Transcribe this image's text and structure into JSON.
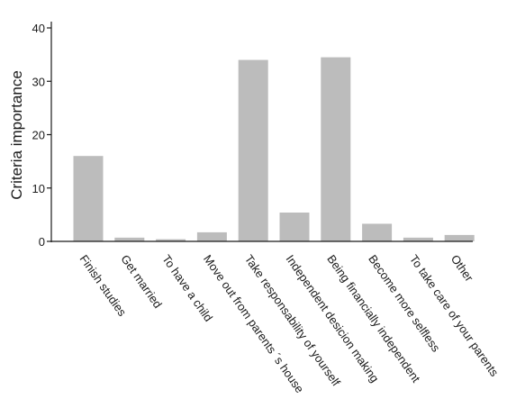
{
  "chart_data": {
    "type": "bar",
    "ylabel": "Criteria importance",
    "xlabel": "",
    "title": "",
    "ylim": [
      0,
      40
    ],
    "yticks": [
      0,
      10,
      20,
      30,
      40
    ],
    "grid": false,
    "bar_color": "#bcbcbc",
    "categories": [
      "Finish studies",
      "Get married",
      "To have a child",
      "Move out from parents ´s house",
      "Take responsability of yourself",
      "Independent desicion making",
      "Being financially independent",
      "Become more selfless",
      "To take care of your parents",
      "Other"
    ],
    "values": [
      16,
      0.7,
      0.4,
      1.7,
      34,
      5.4,
      34.5,
      3.3,
      0.7,
      1.2
    ]
  }
}
